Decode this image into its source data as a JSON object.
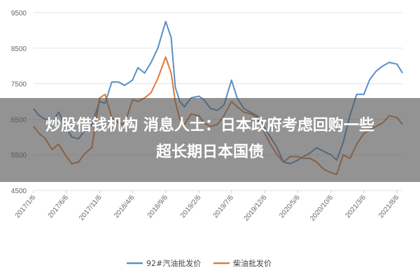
{
  "chart_data": {
    "type": "line",
    "ylim": [
      4500,
      9500
    ],
    "yticks": [
      4500,
      5500,
      6500,
      7500,
      8500,
      9500
    ],
    "xticks": [
      "2017/1/6",
      "2017/6/6",
      "2017/11/6",
      "2018/4/6",
      "2018/9/6",
      "2019/2/6",
      "2019/7/6",
      "2019/12/6",
      "2020/5/6",
      "2020/10/6",
      "2021/3/6",
      "2021/8/6"
    ],
    "grid": true,
    "legend_position": "bottom",
    "series": [
      {
        "name": "92#汽油批发价",
        "color": "#5b8fc7",
        "x": [
          "2017/1/6",
          "2017/2/1",
          "2017/3/1",
          "2017/4/1",
          "2017/5/1",
          "2017/6/6",
          "2017/7/1",
          "2017/8/1",
          "2017/9/1",
          "2017/10/1",
          "2017/11/6",
          "2017/12/1",
          "2018/1/1",
          "2018/2/1",
          "2018/3/1",
          "2018/4/6",
          "2018/5/1",
          "2018/6/1",
          "2018/7/1",
          "2018/8/1",
          "2018/9/6",
          "2018/10/1",
          "2018/10/20",
          "2018/11/10",
          "2018/12/1",
          "2019/1/1",
          "2019/2/6",
          "2019/3/1",
          "2019/4/1",
          "2019/5/1",
          "2019/6/1",
          "2019/7/6",
          "2019/8/1",
          "2019/9/1",
          "2019/10/1",
          "2019/11/1",
          "2019/12/6",
          "2020/1/1",
          "2020/2/1",
          "2020/3/1",
          "2020/4/1",
          "2020/5/6",
          "2020/6/1",
          "2020/7/1",
          "2020/8/1",
          "2020/9/1",
          "2020/10/6",
          "2020/11/1",
          "2020/12/1",
          "2021/1/1",
          "2021/2/1",
          "2021/3/6",
          "2021/4/1",
          "2021/5/1",
          "2021/6/1",
          "2021/7/1",
          "2021/8/6",
          "2021/8/31"
        ],
        "values": [
          6800,
          6600,
          6500,
          6400,
          6700,
          6250,
          6000,
          5950,
          6200,
          6350,
          7000,
          6950,
          7550,
          7550,
          7450,
          7600,
          7950,
          7800,
          8100,
          8500,
          9250,
          8800,
          7400,
          7000,
          6850,
          7100,
          7150,
          7050,
          6800,
          6750,
          6900,
          7600,
          7100,
          6800,
          6700,
          6600,
          6250,
          6000,
          5700,
          5300,
          5250,
          5350,
          5450,
          5550,
          5700,
          5600,
          5500,
          5350,
          5850,
          6600,
          7200,
          7200,
          7600,
          7850,
          8000,
          8100,
          8050,
          7800
        ]
      },
      {
        "name": "柴油批发价",
        "color": "#e07b39",
        "x": [
          "2017/1/6",
          "2017/2/1",
          "2017/3/1",
          "2017/4/1",
          "2017/5/1",
          "2017/6/6",
          "2017/7/1",
          "2017/8/1",
          "2017/9/1",
          "2017/10/1",
          "2017/11/6",
          "2017/12/1",
          "2018/1/1",
          "2018/2/1",
          "2018/3/1",
          "2018/4/6",
          "2018/5/1",
          "2018/6/1",
          "2018/7/1",
          "2018/8/1",
          "2018/9/6",
          "2018/10/1",
          "2018/10/20",
          "2018/11/10",
          "2018/12/1",
          "2019/1/1",
          "2019/2/6",
          "2019/3/1",
          "2019/4/1",
          "2019/5/1",
          "2019/6/1",
          "2019/7/6",
          "2019/8/1",
          "2019/9/1",
          "2019/10/1",
          "2019/11/1",
          "2019/12/6",
          "2020/1/1",
          "2020/2/1",
          "2020/3/1",
          "2020/4/1",
          "2020/5/6",
          "2020/6/1",
          "2020/7/1",
          "2020/8/1",
          "2020/9/1",
          "2020/10/6",
          "2020/11/1",
          "2020/12/1",
          "2021/1/1",
          "2021/2/1",
          "2021/3/6",
          "2021/4/1",
          "2021/5/1",
          "2021/6/1",
          "2021/7/1",
          "2021/8/6",
          "2021/8/31"
        ],
        "values": [
          6300,
          6100,
          5950,
          5650,
          5800,
          5450,
          5250,
          5300,
          5550,
          5700,
          7100,
          7200,
          6550,
          6400,
          6350,
          7050,
          7000,
          7100,
          7250,
          7650,
          8250,
          7800,
          7000,
          6500,
          6350,
          6650,
          6600,
          6400,
          6300,
          6350,
          6600,
          7000,
          6850,
          6700,
          6650,
          6550,
          6100,
          5800,
          5500,
          5300,
          5450,
          5450,
          5400,
          5400,
          5300,
          5100,
          5000,
          4950,
          5500,
          5400,
          5800,
          6100,
          6200,
          6300,
          6400,
          6600,
          6550,
          6350
        ]
      }
    ]
  },
  "headline": {
    "line1": "炒股借钱机构 消息人士：日本政府考虑回购一些",
    "line2": "超长期日本国债"
  }
}
